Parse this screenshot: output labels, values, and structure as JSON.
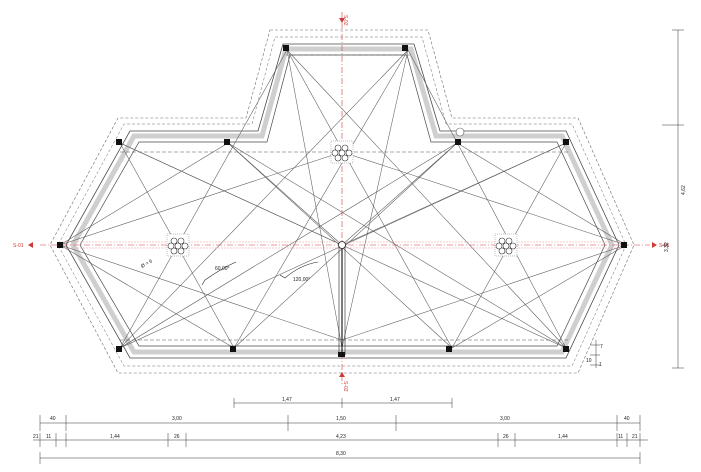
{
  "section_markers": {
    "left": "S-01",
    "right": "S-01",
    "top": "S-02",
    "bottom": "S-02"
  },
  "angles": {
    "a1": "60,00°",
    "a2": "120,00°"
  },
  "misc_labels": {
    "small_dim": "Ø = 6",
    "notch_a": "7",
    "notch_b": "10",
    "notch_c": "1"
  },
  "dims": {
    "inner_1": "1,47",
    "inner_2": "1,47",
    "row1": [
      "40",
      "3,00",
      "1,50",
      "3,00",
      "40"
    ],
    "row2": [
      "21",
      "11",
      "1,44",
      "26",
      "4,23",
      "26",
      "1,44",
      "11",
      "21"
    ],
    "total": "8,30",
    "right_total": "4,62",
    "right_half": "3,32"
  },
  "colors": {
    "section_red": "#d23a3a",
    "line": "#4a4a4a",
    "fill_grey": "#cfcfcf",
    "column": "#111111"
  }
}
